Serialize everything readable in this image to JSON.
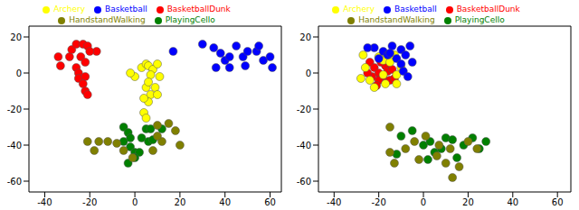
{
  "chart_data": [
    {
      "type": "scatter",
      "xlim": [
        -47,
        65
      ],
      "ylim": [
        -66,
        26
      ],
      "xticks": [
        -40,
        -20,
        0,
        20,
        40,
        60
      ],
      "yticks": [
        -60,
        -40,
        -20,
        0,
        20
      ],
      "legend": "top",
      "marker": "circle",
      "series": [
        {
          "name": "BasketballDunk",
          "color": "#ff0000",
          "x": [
            -34,
            -33,
            -29,
            -28,
            -26,
            -23,
            -24,
            -22,
            -26,
            -25,
            -25,
            -22,
            -23,
            -22,
            -21,
            -21,
            -17,
            -20
          ],
          "y": [
            9,
            4,
            9,
            13,
            16,
            16,
            9,
            6,
            3,
            0,
            -3,
            -2,
            -6,
            -10,
            -12,
            15,
            12,
            12
          ]
        },
        {
          "name": "Archery",
          "color": "#ffff00",
          "x": [
            0,
            -2,
            3,
            5,
            6,
            8,
            7,
            9,
            5,
            7,
            10,
            6,
            4,
            5,
            4,
            11,
            10,
            6
          ],
          "y": [
            -2,
            0,
            3,
            5,
            4,
            2,
            -1,
            -8,
            -8,
            -12,
            -12,
            -16,
            -22,
            -25,
            -14,
            -2,
            5,
            -5
          ]
        },
        {
          "name": "Basketball",
          "color": "#0000ff",
          "x": [
            30,
            35,
            38,
            40,
            42,
            36,
            45,
            48,
            50,
            54,
            55,
            57,
            60,
            61,
            49,
            42,
            17
          ],
          "y": [
            16,
            14,
            11,
            7,
            9,
            3,
            15,
            9,
            12,
            12,
            15,
            7,
            9,
            3,
            4,
            3,
            12
          ]
        },
        {
          "name": "PlayingCello",
          "color": "#008000",
          "x": [
            -5,
            -3,
            -5,
            -2,
            0,
            2,
            3,
            5,
            7,
            6,
            8,
            -3,
            0,
            12,
            -2
          ],
          "y": [
            -30,
            -33,
            -38,
            -41,
            -44,
            -44,
            -36,
            -31,
            -31,
            -38,
            -37,
            -50,
            -47,
            -31,
            -36
          ]
        },
        {
          "name": "HandstandWalking",
          "color": "#808000",
          "x": [
            -21,
            -18,
            -16,
            -12,
            -8,
            -5,
            -1,
            8,
            10,
            12,
            15,
            18,
            20,
            10
          ],
          "y": [
            -38,
            -43,
            -38,
            -38,
            -39,
            -43,
            -47,
            -43,
            -29,
            -38,
            -28,
            -32,
            -40,
            -35
          ]
        }
      ]
    },
    {
      "type": "scatter",
      "xlim": [
        -47,
        66
      ],
      "ylim": [
        -66,
        26
      ],
      "xticks": [
        -40,
        -20,
        0,
        20,
        40,
        60
      ],
      "yticks": [
        -60,
        -40,
        -20,
        0,
        20
      ],
      "legend": "top",
      "marker": "circle",
      "series": [
        {
          "name": "BasketballDunk",
          "color": "#ff0000",
          "x": [
            -24,
            -22,
            -20,
            -18,
            -17,
            -15,
            -13,
            -20,
            -23,
            -16,
            -19,
            -25,
            -14,
            -21
          ],
          "y": [
            6,
            3,
            0,
            -2,
            4,
            -4,
            -3,
            -4,
            -2,
            1,
            6,
            0,
            2,
            -7
          ]
        },
        {
          "name": "Archery",
          "color": "#ffff00",
          "x": [
            -28,
            -26,
            -22,
            -18,
            -15,
            -12,
            -10,
            -17,
            -20,
            -13,
            -24,
            -12,
            -18,
            -27
          ],
          "y": [
            -3,
            3,
            -8,
            7,
            6,
            -1,
            3,
            -6,
            9,
            10,
            -4,
            -6,
            -1,
            10
          ]
        },
        {
          "name": "Basketball",
          "color": "#0000ff",
          "x": [
            -22,
            -18,
            -14,
            -10,
            -8,
            -6,
            -5,
            -12,
            -16,
            -10,
            -9,
            -20,
            -15,
            -7,
            -25
          ],
          "y": [
            14,
            12,
            15,
            13,
            10,
            15,
            6,
            8,
            10,
            5,
            1,
            8,
            11,
            -2,
            14
          ]
        },
        {
          "name": "PlayingCello",
          "color": "#008000",
          "x": [
            -10,
            -5,
            0,
            3,
            5,
            8,
            10,
            13,
            18,
            22,
            25,
            28,
            -12,
            2,
            15
          ],
          "y": [
            -35,
            -32,
            -40,
            -38,
            -44,
            -42,
            -36,
            -37,
            -40,
            -36,
            -42,
            -38,
            -45,
            -48,
            -47
          ]
        },
        {
          "name": "HandstandWalking",
          "color": "#808000",
          "x": [
            -15,
            -13,
            -8,
            -4,
            -2,
            1,
            6,
            10,
            12,
            16,
            20,
            24,
            13,
            -15,
            7
          ],
          "y": [
            -44,
            -50,
            -42,
            -38,
            -48,
            -35,
            -46,
            -50,
            -42,
            -52,
            -38,
            -42,
            -58,
            -30,
            -40
          ]
        }
      ]
    }
  ]
}
